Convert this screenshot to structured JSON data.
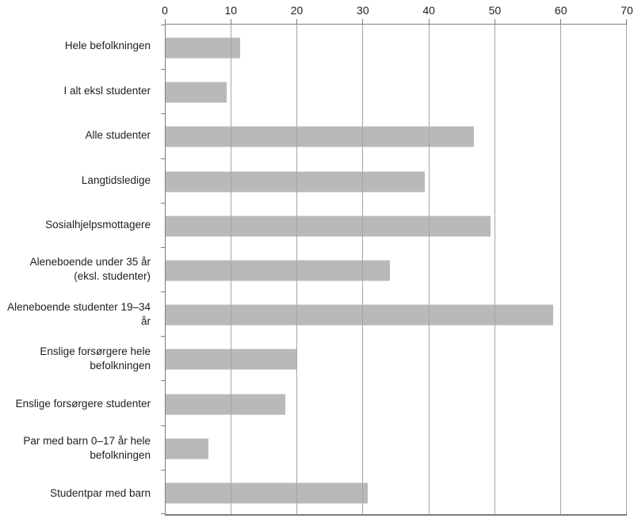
{
  "chart_data": {
    "type": "bar",
    "orientation": "horizontal",
    "title": "",
    "xlabel": "",
    "ylabel": "",
    "categories": [
      "Hele befolkningen",
      "I alt eksl studenter",
      "Alle studenter",
      "Langtidsledige",
      "Sosialhjelpsmottagere",
      "Aleneboende under 35 år (eksl. studenter)",
      "Aleneboende studenter 19–34 år",
      "Enslige forsørgere hele befolkningen",
      "Enslige forsørgere studenter",
      "Par med barn 0–17 år hele befolkningen",
      "Studentpar med barn"
    ],
    "category_lines": [
      [
        "Hele befolkningen"
      ],
      [
        "I alt eksl studenter"
      ],
      [
        "Alle studenter"
      ],
      [
        "Langtidsledige"
      ],
      [
        "Sosialhjelpsmottagere"
      ],
      [
        "Aleneboende under 35 år",
        "(eksl. studenter)"
      ],
      [
        "Aleneboende studenter 19–34 år"
      ],
      [
        "Enslige forsørgere hele",
        "befolkningen"
      ],
      [
        "Enslige forsørgere studenter"
      ],
      [
        "Par med barn 0–17 år hele",
        "befolkningen"
      ],
      [
        "Studentpar med barn"
      ]
    ],
    "values": [
      11.3,
      9.3,
      46.8,
      39.3,
      49.3,
      34.0,
      58.8,
      20.0,
      18.2,
      6.5,
      30.7
    ],
    "xlim": [
      0,
      70
    ],
    "x_ticks": [
      0,
      10,
      20,
      30,
      40,
      50,
      60,
      70
    ],
    "grid": "vertical",
    "legend": "none"
  },
  "colors": {
    "bar": "#b9b9b9",
    "grid": "#a6a6a6",
    "axis": "#7d7d7d",
    "text": "#1f1f1f",
    "background": "#ffffff"
  }
}
